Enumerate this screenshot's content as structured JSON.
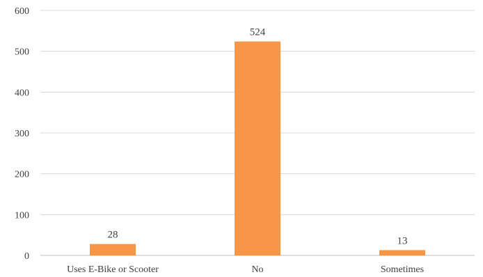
{
  "chart_data": {
    "type": "bar",
    "categories": [
      "Uses E-Bike or Scooter",
      "No",
      "Sometimes"
    ],
    "values": [
      28,
      524,
      13
    ],
    "title": "",
    "xlabel": "",
    "ylabel": "",
    "ylim": [
      0,
      600
    ],
    "yticks": [
      0,
      100,
      200,
      300,
      400,
      500,
      600
    ],
    "grid": true,
    "legend": "none",
    "bar_color": "#F79646"
  }
}
